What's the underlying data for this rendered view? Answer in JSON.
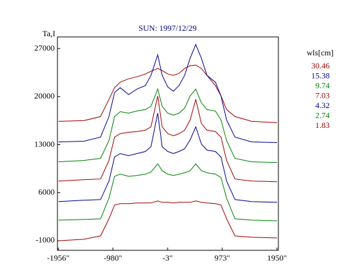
{
  "chart_data": {
    "type": "line",
    "title": "SUN: 1997/12/29",
    "y_label": "Ta,I",
    "legend_title": "wls[cm]",
    "legend": "right",
    "x": [
      -1950,
      -1500,
      -1200,
      -1050,
      -950,
      -850,
      -700,
      -550,
      -400,
      -300,
      -180,
      -100,
      0,
      100,
      200,
      300,
      400,
      500,
      600,
      700,
      850,
      950,
      1050,
      1200,
      1500,
      1950
    ],
    "series": [
      {
        "name": "30.46",
        "color": "#a00000",
        "values": [
          16400,
          16500,
          17100,
          19600,
          21300,
          22100,
          22600,
          22900,
          23300,
          23700,
          24100,
          23800,
          23300,
          23100,
          23400,
          24100,
          24500,
          24600,
          24100,
          23100,
          21600,
          20100,
          18100,
          17100,
          16400,
          16200
        ]
      },
      {
        "name": "15.38",
        "color": "#00008b",
        "values": [
          13400,
          13500,
          14100,
          17100,
          20600,
          21300,
          20300,
          21100,
          21600,
          23100,
          26100,
          23100,
          21400,
          20800,
          21600,
          23100,
          25600,
          27600,
          25600,
          23100,
          22100,
          20100,
          16600,
          14100,
          13400,
          13300
        ]
      },
      {
        "name": "9.74",
        "color": "#008000",
        "values": [
          10500,
          10700,
          11000,
          13600,
          17100,
          17800,
          17600,
          17900,
          18100,
          18600,
          21100,
          18600,
          17600,
          17300,
          17600,
          18300,
          20100,
          21100,
          19100,
          18100,
          17900,
          16600,
          13600,
          11000,
          10500,
          10400
        ]
      },
      {
        "name": "7.03",
        "color": "#a00000",
        "values": [
          7700,
          7900,
          8000,
          10700,
          14100,
          14600,
          14800,
          14900,
          15100,
          15600,
          20100,
          15600,
          14600,
          14300,
          14600,
          15100,
          16600,
          19600,
          16100,
          15100,
          14900,
          14100,
          10700,
          8000,
          7700,
          7600
        ]
      },
      {
        "name": "4.32",
        "color": "#00008b",
        "values": [
          4700,
          4900,
          5000,
          7700,
          11200,
          11700,
          11400,
          11700,
          12000,
          12700,
          17600,
          12700,
          12000,
          11700,
          12000,
          12400,
          13700,
          15600,
          13100,
          12200,
          12000,
          11200,
          7700,
          5000,
          4700,
          4600
        ]
      },
      {
        "name": "2.74",
        "color": "#008000",
        "values": [
          2000,
          2100,
          2200,
          5200,
          8400,
          8700,
          8400,
          8500,
          8700,
          9000,
          10200,
          9200,
          8700,
          8500,
          8700,
          8900,
          9200,
          10200,
          9200,
          8900,
          8700,
          8200,
          5200,
          2200,
          2000,
          1900
        ]
      },
      {
        "name": "1.83",
        "color": "#a00000",
        "values": [
          -1000,
          -800,
          -300,
          2200,
          4200,
          4400,
          4400,
          4500,
          4500,
          4500,
          4800,
          4600,
          4600,
          4500,
          4600,
          4600,
          4600,
          4800,
          4600,
          4500,
          4400,
          4200,
          2200,
          -300,
          -500,
          -600
        ]
      }
    ],
    "xlim": [
      -1970,
      1975
    ],
    "ylim": [
      -2400,
      28700
    ],
    "xticks": [
      {
        "value": -1956,
        "label": "-1956\""
      },
      {
        "value": -980,
        "label": "-980\""
      },
      {
        "value": -3,
        "label": "-3\""
      },
      {
        "value": 973,
        "label": "973\""
      },
      {
        "value": 1950,
        "label": "1950\""
      }
    ],
    "yticks": [
      -1000,
      6000,
      13000,
      20000,
      27000
    ]
  }
}
